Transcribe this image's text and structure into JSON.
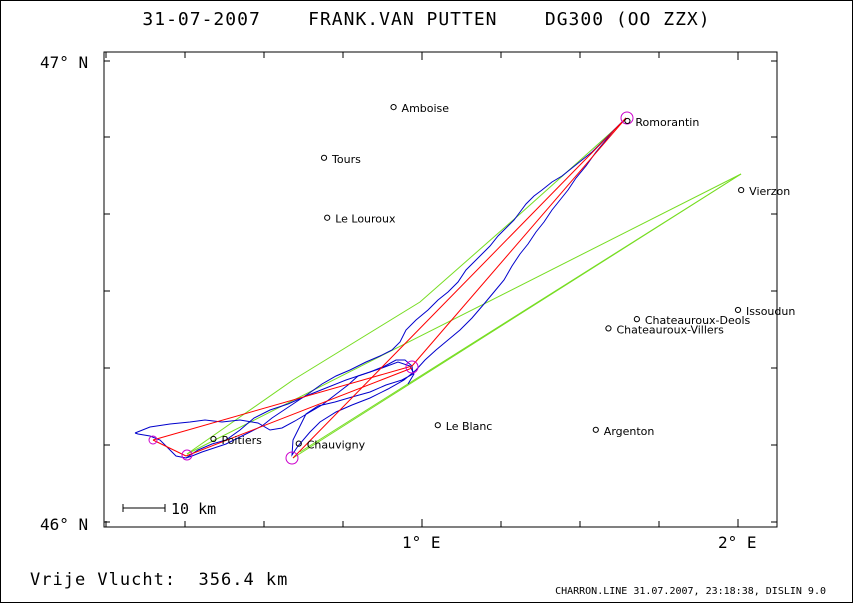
{
  "header": {
    "title": "31-07-2007    FRANK.VAN PUTTEN    DG300 (OO ZZX)"
  },
  "map": {
    "axes": {
      "lat_top_label": "47° N",
      "lat_bottom_label": "46° N",
      "lon_labels": [
        "1° E",
        "2° E"
      ]
    },
    "places": [
      {
        "name": "Amboise",
        "lon": 0.91,
        "lat": 46.9
      },
      {
        "name": "Tours",
        "lon": 0.69,
        "lat": 46.79
      },
      {
        "name": "Le Louroux",
        "lon": 0.7,
        "lat": 46.66
      },
      {
        "name": "Romorantin",
        "lon": 1.65,
        "lat": 46.87
      },
      {
        "name": "Vierzon",
        "lon": 2.01,
        "lat": 46.72
      },
      {
        "name": "Issoudun",
        "lon": 2.0,
        "lat": 46.46
      },
      {
        "name": "Chateauroux-Deols",
        "lon": 1.68,
        "lat": 46.44
      },
      {
        "name": "Chateauroux-Villers",
        "lon": 1.59,
        "lat": 46.42
      },
      {
        "name": "Le Blanc",
        "lon": 1.05,
        "lat": 46.21
      },
      {
        "name": "Argenton",
        "lon": 1.55,
        "lat": 46.2
      },
      {
        "name": "Poitiers",
        "lon": 0.34,
        "lat": 46.18
      },
      {
        "name": "Chauvigny",
        "lon": 0.61,
        "lat": 46.17
      }
    ],
    "scale_bar": {
      "label": "10 km"
    },
    "colors": {
      "track": "#0000cc",
      "legs_red": "#ff0000",
      "legs_green": "#77dd22",
      "turnpoint_circle": "#cc00cc"
    }
  },
  "footer": {
    "distance_text": "Vrije Vlucht:  356.4 km",
    "credit": "CHARRON.LINE 31.07.2007, 23:18:38, DISLIN 9.0"
  }
}
